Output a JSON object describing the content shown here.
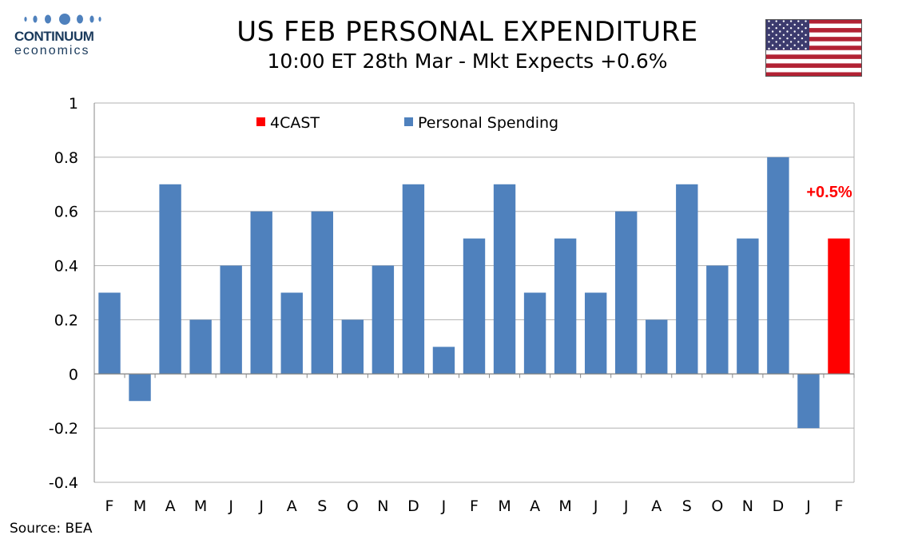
{
  "logo": {
    "name": "CONTINUUM",
    "tagline": "economics"
  },
  "title": "US FEB PERSONAL EXPENDITURE",
  "subtitle": "10:00 ET 28th Mar - Mkt Expects +0.6%",
  "source": "Source: BEA",
  "flag_icon": "us-flag-icon",
  "colors": {
    "personal_spending": "#4f81bd",
    "forecast": "#ff0000",
    "grid": "#b0b0b0",
    "brand": "#1a3a5c"
  },
  "chart_data": {
    "type": "bar",
    "categories": [
      "F",
      "M",
      "A",
      "M",
      "J",
      "J",
      "A",
      "S",
      "O",
      "N",
      "D",
      "J",
      "F",
      "M",
      "A",
      "M",
      "J",
      "J",
      "A",
      "S",
      "O",
      "N",
      "D",
      "J",
      "F"
    ],
    "series": [
      {
        "name": "Personal Spending",
        "values": [
          0.3,
          -0.1,
          0.7,
          0.2,
          0.4,
          0.6,
          0.3,
          0.6,
          0.2,
          0.4,
          0.7,
          0.1,
          0.5,
          0.7,
          0.3,
          0.5,
          0.3,
          0.6,
          0.2,
          0.7,
          0.4,
          0.5,
          0.8,
          -0.2,
          null
        ]
      },
      {
        "name": "4CAST",
        "values": [
          null,
          null,
          null,
          null,
          null,
          null,
          null,
          null,
          null,
          null,
          null,
          null,
          null,
          null,
          null,
          null,
          null,
          null,
          null,
          null,
          null,
          null,
          null,
          null,
          0.5
        ]
      }
    ],
    "yticks": [
      "1",
      "0.8",
      "0.6",
      "0.4",
      "0.2",
      "0",
      "-0.2",
      "-0.4"
    ],
    "ylim": [
      -0.4,
      1
    ],
    "grid": true,
    "legend_position": "top",
    "annotation": "+0.5%"
  }
}
